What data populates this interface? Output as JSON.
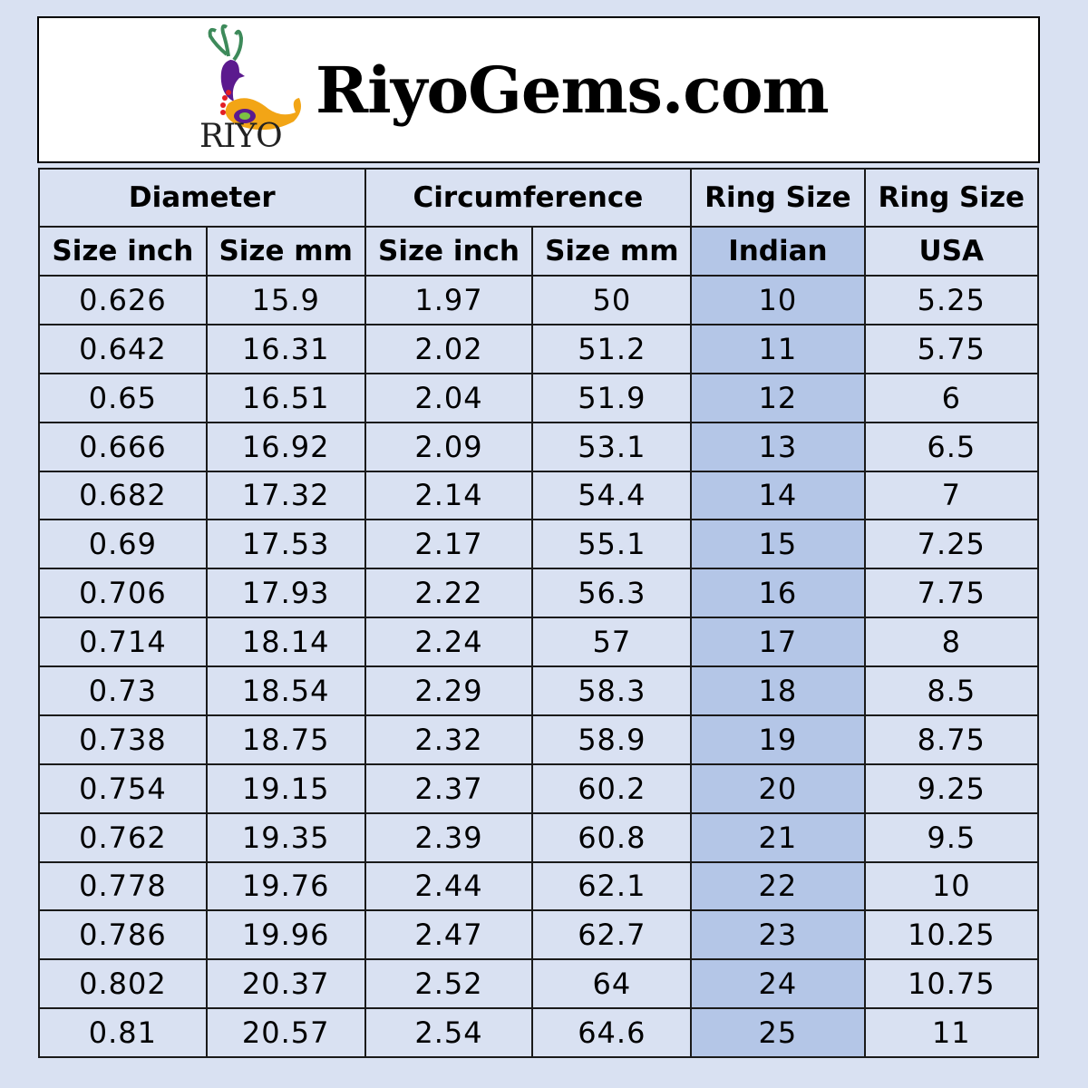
{
  "header": {
    "logo_text": "RIYO",
    "site_title": "RiyoGems.com"
  },
  "colors": {
    "background": "#d9e1f2",
    "indian_column": "#b4c6e7"
  },
  "table": {
    "group_headers": [
      "Diameter",
      "Circumference",
      "Ring Size",
      "Ring Size"
    ],
    "sub_headers": [
      "Size inch",
      "Size mm",
      "Size inch",
      "Size mm",
      "Indian",
      "USA"
    ],
    "rows": [
      [
        "0.626",
        "15.9",
        "1.97",
        "50",
        "10",
        "5.25"
      ],
      [
        "0.642",
        "16.31",
        "2.02",
        "51.2",
        "11",
        "5.75"
      ],
      [
        "0.65",
        "16.51",
        "2.04",
        "51.9",
        "12",
        "6"
      ],
      [
        "0.666",
        "16.92",
        "2.09",
        "53.1",
        "13",
        "6.5"
      ],
      [
        "0.682",
        "17.32",
        "2.14",
        "54.4",
        "14",
        "7"
      ],
      [
        "0.69",
        "17.53",
        "2.17",
        "55.1",
        "15",
        "7.25"
      ],
      [
        "0.706",
        "17.93",
        "2.22",
        "56.3",
        "16",
        "7.75"
      ],
      [
        "0.714",
        "18.14",
        "2.24",
        "57",
        "17",
        "8"
      ],
      [
        "0.73",
        "18.54",
        "2.29",
        "58.3",
        "18",
        "8.5"
      ],
      [
        "0.738",
        "18.75",
        "2.32",
        "58.9",
        "19",
        "8.75"
      ],
      [
        "0.754",
        "19.15",
        "2.37",
        "60.2",
        "20",
        "9.25"
      ],
      [
        "0.762",
        "19.35",
        "2.39",
        "60.8",
        "21",
        "9.5"
      ],
      [
        "0.778",
        "19.76",
        "2.44",
        "62.1",
        "22",
        "10"
      ],
      [
        "0.786",
        "19.96",
        "2.47",
        "62.7",
        "23",
        "10.25"
      ],
      [
        "0.802",
        "20.37",
        "2.52",
        "64",
        "24",
        "10.75"
      ],
      [
        "0.81",
        "20.57",
        "2.54",
        "64.6",
        "25",
        "11"
      ]
    ]
  }
}
